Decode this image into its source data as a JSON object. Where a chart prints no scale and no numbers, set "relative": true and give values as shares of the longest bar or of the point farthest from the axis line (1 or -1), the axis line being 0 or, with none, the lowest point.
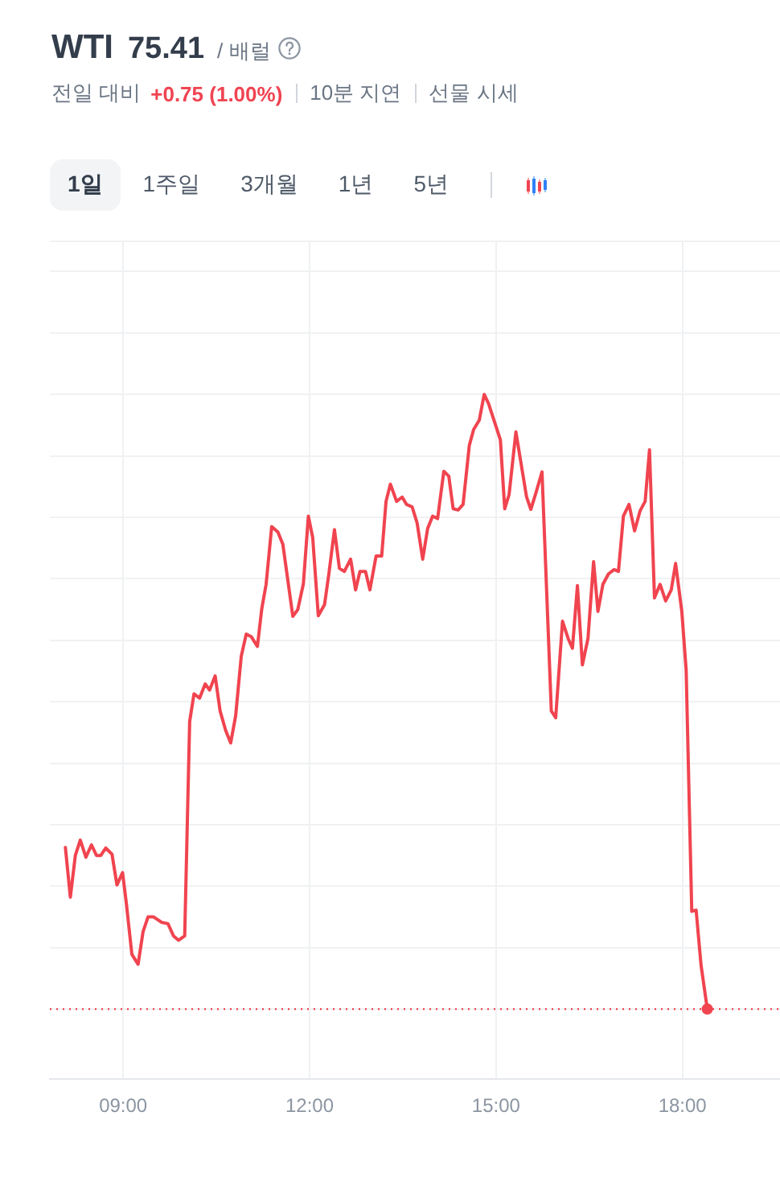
{
  "chart_data": {
    "type": "line",
    "title": "WTI",
    "annotations": [
      "75.41",
      "/ 배럴",
      "전일 대비",
      "+0.75 (1.00%)",
      "10분 지연",
      "선물 시세",
      "1일",
      "1주일",
      "3개월",
      "1년",
      "5년"
    ],
    "relative": true,
    "grid": true,
    "tick_labels": "x",
    "xlim": [
      7.82,
      19.57
    ],
    "xticks": [
      {
        "value": 9,
        "label": "09:00"
      },
      {
        "value": 12,
        "label": "12:00"
      },
      {
        "value": 15,
        "label": "15:00"
      },
      {
        "value": 18,
        "label": "18:00"
      }
    ],
    "ref_lines": [
      {
        "axis": "y",
        "value": 0,
        "color": "#f0444f",
        "line_style": "dotted"
      }
    ],
    "series": [
      {
        "color": "#f0444f",
        "x": [
          8.07,
          8.15,
          8.23,
          8.31,
          8.4,
          8.49,
          8.57,
          8.64,
          8.72,
          8.82,
          8.9,
          8.99,
          9.05,
          9.14,
          9.24,
          9.32,
          9.4,
          9.49,
          9.62,
          9.72,
          9.81,
          9.89,
          9.99,
          10.07,
          10.14,
          10.23,
          10.32,
          10.39,
          10.48,
          10.56,
          10.65,
          10.73,
          10.81,
          10.9,
          10.98,
          11.06,
          11.16,
          11.23,
          11.3,
          11.39,
          11.49,
          11.57,
          11.73,
          11.81,
          11.9,
          11.98,
          12.05,
          12.14,
          12.24,
          12.31,
          12.4,
          12.48,
          12.56,
          12.66,
          12.74,
          12.81,
          12.9,
          12.97,
          13.07,
          13.16,
          13.23,
          13.3,
          13.4,
          13.49,
          13.56,
          13.65,
          13.73,
          13.82,
          13.9,
          13.98,
          14.06,
          14.16,
          14.24,
          14.31,
          14.39,
          14.47,
          14.57,
          14.64,
          14.73,
          14.81,
          14.88,
          15.07,
          15.14,
          15.21,
          15.32,
          15.49,
          15.56,
          15.64,
          15.74,
          15.89,
          15.96,
          16.07,
          16.16,
          16.23,
          16.31,
          16.39,
          16.48,
          16.57,
          16.64,
          16.72,
          16.81,
          16.9,
          16.97,
          17.05,
          17.14,
          17.23,
          17.32,
          17.4,
          17.47,
          17.55,
          17.64,
          17.73,
          17.82,
          17.89,
          17.99,
          18.06,
          18.15,
          18.22,
          18.3,
          18.4
        ],
        "values": [
          0.263,
          0.182,
          0.25,
          0.275,
          0.247,
          0.267,
          0.25,
          0.25,
          0.262,
          0.252,
          0.202,
          0.222,
          0.173,
          0.089,
          0.073,
          0.126,
          0.15,
          0.15,
          0.141,
          0.139,
          0.119,
          0.112,
          0.119,
          0.468,
          0.513,
          0.506,
          0.529,
          0.519,
          0.542,
          0.485,
          0.453,
          0.433,
          0.477,
          0.574,
          0.61,
          0.606,
          0.59,
          0.651,
          0.691,
          0.785,
          0.776,
          0.756,
          0.639,
          0.65,
          0.692,
          0.802,
          0.767,
          0.64,
          0.658,
          0.708,
          0.78,
          0.717,
          0.712,
          0.732,
          0.682,
          0.712,
          0.712,
          0.682,
          0.737,
          0.737,
          0.826,
          0.854,
          0.826,
          0.833,
          0.821,
          0.817,
          0.791,
          0.732,
          0.782,
          0.802,
          0.798,
          0.875,
          0.867,
          0.814,
          0.812,
          0.821,
          0.917,
          0.943,
          0.958,
          1,
          0.985,
          0.926,
          0.814,
          0.837,
          0.939,
          0.834,
          0.813,
          0.839,
          0.874,
          0.485,
          0.474,
          0.631,
          0.603,
          0.587,
          0.689,
          0.56,
          0.603,
          0.728,
          0.647,
          0.691,
          0.708,
          0.715,
          0.712,
          0.802,
          0.821,
          0.778,
          0.811,
          0.826,
          0.91,
          0.669,
          0.691,
          0.664,
          0.682,
          0.725,
          0.647,
          0.551,
          0.159,
          0.161,
          0.071,
          0
        ]
      },
      {
        "type": "scatter",
        "color": "#f0444f",
        "marker": "circle",
        "x": [
          18.4
        ],
        "values": [
          0
        ]
      }
    ]
  }
}
